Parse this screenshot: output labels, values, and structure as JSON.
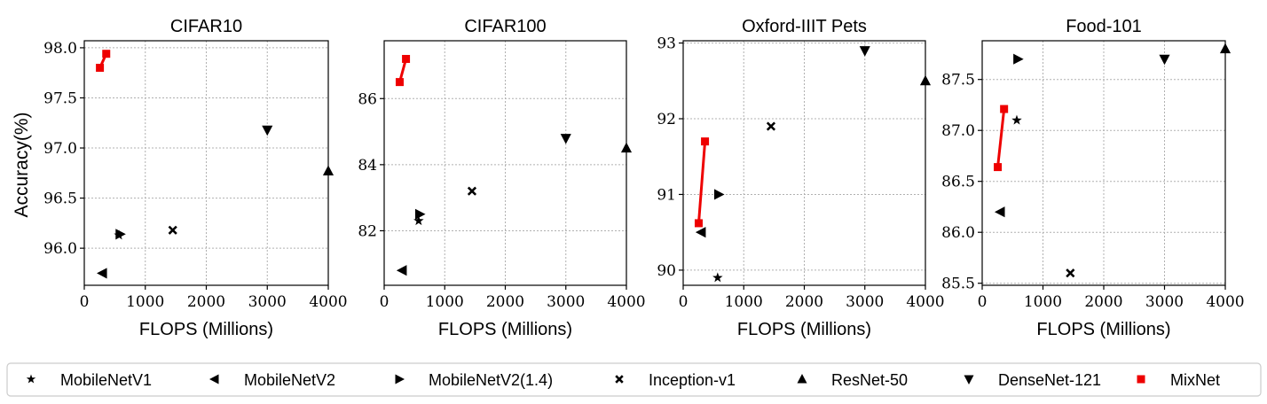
{
  "figure": {
    "ylabel": "Accuracy(%)",
    "xlabel": "FLOPS (Millions)",
    "colors": {
      "mixnet": "#ee0000",
      "marker": "#000000",
      "grid": "#b0b0b0"
    }
  },
  "legend": {
    "placement": "bottom",
    "entries": [
      {
        "label": "MobileNetV1",
        "marker": "star"
      },
      {
        "label": "MobileNetV2",
        "marker": "triangle-left"
      },
      {
        "label": "MobileNetV2(1.4)",
        "marker": "triangle-right"
      },
      {
        "label": "Inception-v1",
        "marker": "x"
      },
      {
        "label": "ResNet-50",
        "marker": "triangle-up"
      },
      {
        "label": "DenseNet-121",
        "marker": "triangle-down"
      },
      {
        "label": "MixNet",
        "marker": "square"
      }
    ]
  },
  "chart_data": [
    {
      "type": "scatter",
      "title": "CIFAR10",
      "xlabel": "FLOPS (Millions)",
      "ylabel": "Accuracy(%)",
      "xlim": [
        0,
        4000
      ],
      "ylim": [
        95.63,
        98.07
      ],
      "xticks": [
        "0",
        "1000",
        "2000",
        "3000",
        "4000"
      ],
      "yticks": [
        {
          "v": 96.0,
          "label": "96.0"
        },
        {
          "v": 96.5,
          "label": "96.5"
        },
        {
          "v": 97.0,
          "label": "97.0"
        },
        {
          "v": 97.5,
          "label": "97.5"
        },
        {
          "v": 98.0,
          "label": "98.0"
        }
      ],
      "grid": true,
      "points": [
        {
          "model": "MobileNetV2",
          "marker": "triangle-left",
          "x": 300,
          "y": 95.75
        },
        {
          "model": "MobileNetV2(1.4)",
          "marker": "triangle-right",
          "x": 585,
          "y": 96.14
        },
        {
          "model": "MobileNetV1",
          "marker": "star",
          "x": 569,
          "y": 96.13
        },
        {
          "model": "Inception-v1",
          "marker": "x",
          "x": 1450,
          "y": 96.18
        },
        {
          "model": "DenseNet-121",
          "marker": "triangle-down",
          "x": 3000,
          "y": 97.18
        },
        {
          "model": "ResNet-50",
          "marker": "triangle-up",
          "x": 4000,
          "y": 96.77
        }
      ],
      "mixnet": [
        {
          "x": 256,
          "y": 97.8
        },
        {
          "x": 360,
          "y": 97.94
        }
      ]
    },
    {
      "type": "scatter",
      "title": "CIFAR100",
      "xlabel": "FLOPS (Millions)",
      "ylabel": "",
      "xlim": [
        0,
        4000
      ],
      "ylim": [
        80.35,
        87.75
      ],
      "xticks": [
        "0",
        "1000",
        "2000",
        "3000",
        "4000"
      ],
      "yticks": [
        {
          "v": 82,
          "label": "82"
        },
        {
          "v": 84,
          "label": "84"
        },
        {
          "v": 86,
          "label": "86"
        }
      ],
      "grid": true,
      "points": [
        {
          "model": "MobileNetV2",
          "marker": "triangle-left",
          "x": 300,
          "y": 80.8
        },
        {
          "model": "MobileNetV2(1.4)",
          "marker": "triangle-right",
          "x": 585,
          "y": 82.5
        },
        {
          "model": "MobileNetV1",
          "marker": "star",
          "x": 569,
          "y": 82.3
        },
        {
          "model": "Inception-v1",
          "marker": "x",
          "x": 1450,
          "y": 83.2
        },
        {
          "model": "DenseNet-121",
          "marker": "triangle-down",
          "x": 3000,
          "y": 84.8
        },
        {
          "model": "ResNet-50",
          "marker": "triangle-up",
          "x": 4000,
          "y": 84.5
        }
      ],
      "mixnet": [
        {
          "x": 256,
          "y": 86.5
        },
        {
          "x": 360,
          "y": 87.2
        }
      ]
    },
    {
      "type": "scatter",
      "title": "Oxford-IIIT Pets",
      "xlabel": "FLOPS (Millions)",
      "ylabel": "",
      "xlim": [
        0,
        4000
      ],
      "ylim": [
        89.8,
        93.03
      ],
      "xticks": [
        "0",
        "1000",
        "2000",
        "3000",
        "4000"
      ],
      "yticks": [
        {
          "v": 90,
          "label": "90"
        },
        {
          "v": 91,
          "label": "91"
        },
        {
          "v": 92,
          "label": "92"
        },
        {
          "v": 93,
          "label": "93"
        }
      ],
      "grid": true,
      "points": [
        {
          "model": "MobileNetV1",
          "marker": "star",
          "x": 569,
          "y": 89.9
        },
        {
          "model": "MobileNetV2",
          "marker": "triangle-left",
          "x": 300,
          "y": 90.5
        },
        {
          "model": "MobileNetV2(1.4)",
          "marker": "triangle-right",
          "x": 585,
          "y": 91.0
        },
        {
          "model": "Inception-v1",
          "marker": "x",
          "x": 1450,
          "y": 91.9
        },
        {
          "model": "DenseNet-121",
          "marker": "triangle-down",
          "x": 3000,
          "y": 92.9
        },
        {
          "model": "ResNet-50",
          "marker": "triangle-up",
          "x": 4000,
          "y": 92.5
        }
      ],
      "mixnet": [
        {
          "x": 256,
          "y": 90.62
        },
        {
          "x": 360,
          "y": 91.7
        }
      ]
    },
    {
      "type": "scatter",
      "title": "Food-101",
      "xlabel": "FLOPS (Millions)",
      "ylabel": "",
      "xlim": [
        0,
        4000
      ],
      "ylim": [
        85.48,
        87.88
      ],
      "xticks": [
        "0",
        "1000",
        "2000",
        "3000",
        "4000"
      ],
      "yticks": [
        {
          "v": 85.5,
          "label": "85.5"
        },
        {
          "v": 86.0,
          "label": "86.0"
        },
        {
          "v": 86.5,
          "label": "86.5"
        },
        {
          "v": 87.0,
          "label": "87.0"
        },
        {
          "v": 87.5,
          "label": "87.5"
        }
      ],
      "grid": true,
      "points": [
        {
          "model": "MobileNetV2",
          "marker": "triangle-left",
          "x": 300,
          "y": 86.2
        },
        {
          "model": "MobileNetV2(1.4)",
          "marker": "triangle-right",
          "x": 585,
          "y": 87.7
        },
        {
          "model": "MobileNetV1",
          "marker": "star",
          "x": 569,
          "y": 87.1
        },
        {
          "model": "Inception-v1",
          "marker": "x",
          "x": 1450,
          "y": 85.6
        },
        {
          "model": "DenseNet-121",
          "marker": "triangle-down",
          "x": 3000,
          "y": 87.7
        },
        {
          "model": "ResNet-50",
          "marker": "triangle-up",
          "x": 4000,
          "y": 87.8
        }
      ],
      "mixnet": [
        {
          "x": 256,
          "y": 86.64
        },
        {
          "x": 360,
          "y": 87.21
        }
      ]
    }
  ]
}
